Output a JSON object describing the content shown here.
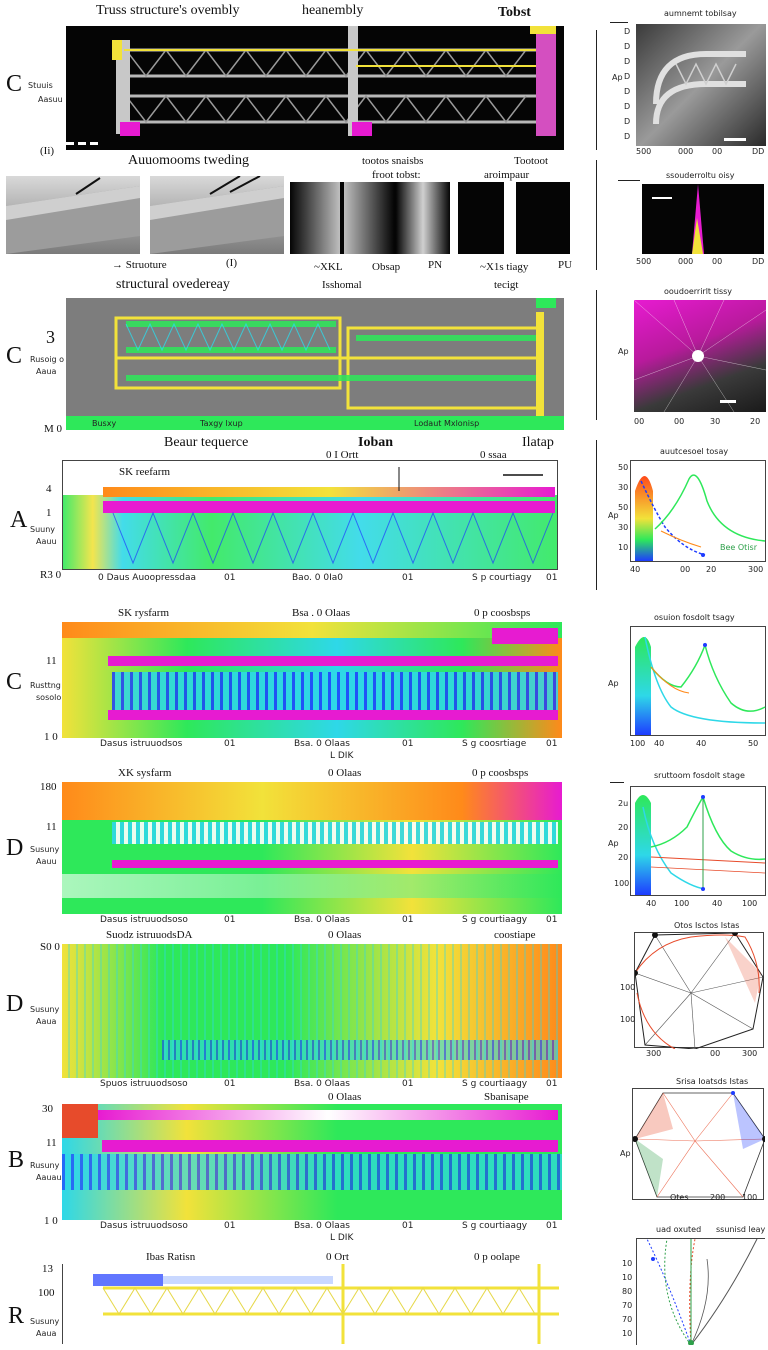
{
  "top_row": {
    "title_left": "Truss structure's ovembly",
    "title_mid": "heanembly",
    "title_right": "Tobst",
    "letter": "C",
    "side_label_1": "Stuuis",
    "side_label_2": "Aasuu",
    "corner_label": "(Ii)"
  },
  "weld_row": {
    "title_left": "Auuomooms tweding",
    "title_mid": "tootos snaisbs",
    "subtitle_mid": "froot tobst:",
    "title_right": "Tootoot",
    "subtitle_right": "aroimpaur",
    "arrow_label": "Struoture",
    "label_0": "(I)",
    "label_1": "~XKL",
    "label_2": "Obsap",
    "label_3": "PN",
    "label_4": "~X1s tiagy",
    "label_5": "PU"
  },
  "overlay_row": {
    "title_left": "structural ovedereay",
    "title_mid": "Isshomal",
    "title_right": "tecigt",
    "letter": "C",
    "number": "3",
    "side_label_1": "Rusoig o",
    "side_label_2": "Aaua",
    "bottom_left": "M 0",
    "bottom_1": "Busxy",
    "bottom_2": "Taxgy lxup",
    "bottom_3": "Lodaut Mxlonisp"
  },
  "map_a": {
    "title_left": "Beaur tequerce",
    "title_mid": "Ioban",
    "title_right": "Ilatap",
    "top_1": "0 I Ortt",
    "top_2": "0 ssaa",
    "inner_label": "SK reefarm",
    "letter": "A",
    "y_top": "4",
    "y_mid": "1",
    "y_bottom": "R3 0",
    "side_label_1": "Suuny",
    "side_label_2": "Aauu",
    "x_1": "0 Daus Auoopressdaa",
    "x_2": "01",
    "x_3": "Bao. 0 0Ia0",
    "x_4": "01",
    "x_5": "S p courtiagy",
    "x_6": "01"
  },
  "map_c": {
    "top_1": "SK rysfarm",
    "top_2": "Bsa . 0 Olaas",
    "top_3": "0 p coosbsps",
    "letter": "C",
    "y_top": "11",
    "y_bottom": "1 0",
    "side_label_1": "Rusttng",
    "side_label_2": "sosolo",
    "x_1": "Dasus istruuodsos",
    "x_2": "01",
    "x_3": "Bsa. 0 Olaas",
    "x_4": "01",
    "x_5": "S g coosrtiage",
    "x_6": "01",
    "x_center": "L DIK"
  },
  "map_d1": {
    "top_1": "XK sysfarm",
    "top_2": "0 Olaas",
    "top_3": "0 p coosbsps",
    "letter": "D",
    "y_top": "180",
    "y_mid": "11",
    "side_label_1": "Susuny",
    "side_label_2": "Aauu",
    "x_1": "Dasus istruuodsoso",
    "x_2": "01",
    "x_3": "Bsa. 0 Olaas",
    "x_4": "01",
    "x_5": "S g courtiaagy",
    "x_6": "01"
  },
  "map_d2": {
    "top_1": "Suodz istruuodsDA",
    "top_2": "0 Olaas",
    "top_3": "coostiape",
    "letter": "D",
    "y_top": "S0 0",
    "side_label_1": "Susuny",
    "side_label_2": "Aaua",
    "x_1": "Spuos istruuodsoso",
    "x_2": "01",
    "x_3": "Bsa. 0 Olaas",
    "x_4": "01",
    "x_5": "S g courtiaagy",
    "x_6": "01"
  },
  "map_b": {
    "top_1": "0 Olaas",
    "top_2": "Sbanisape",
    "letter": "B",
    "y_top": "30",
    "y_mid": "11",
    "y_bottom": "1 0",
    "side_label_1": "Rusuny",
    "side_label_2": "Aauau",
    "x_1": "Dasus istruuodsoso",
    "x_2": "01",
    "x_3": "Bsa. 0 Olaas",
    "x_4": "01",
    "x_5": "S g courtiaagy",
    "x_6": "01",
    "x_center": "L DIK"
  },
  "map_r": {
    "title_left": "Ibas Ratisn",
    "title_mid": "0 Ort",
    "title_right": "0 p oolape",
    "letter": "R",
    "y_top": "13",
    "y_mid": "100",
    "side_label_1": "Susuny",
    "side_label_2": "Aaua"
  },
  "right_col": {
    "sem_title": "aumnemt tobilsay",
    "sem_ticks": [
      "D",
      "D",
      "D",
      "D",
      "D",
      "D",
      "D",
      "D"
    ],
    "sem_y_label": "Ap",
    "sem_x": [
      "500",
      "000",
      "00",
      "DD"
    ],
    "heat_title": "ssouderroltu oisy",
    "heat_x": [
      "500",
      "000",
      "00",
      "DD"
    ],
    "polar_title": "ooudoerrirlt tissy",
    "polar_y_label": "Ap",
    "polar_x": [
      "00",
      "00",
      "30",
      "20"
    ],
    "line1_title": "auutcesoel tosay",
    "line1_y": [
      "50",
      "30",
      "50",
      "30",
      "10"
    ],
    "line1_y_label": "Ap",
    "line1_x": [
      "40",
      "00",
      "20",
      "300"
    ],
    "line1_legend": "Bee Otisr",
    "line2_title": "osuion fosdolt tsagy",
    "line2_y_label": "Ap",
    "line2_x": [
      "100",
      "40",
      "40",
      "50"
    ],
    "line3_title": "sruttoom fosdolt stage",
    "line3_y": [
      "2u",
      "20",
      "20",
      "100"
    ],
    "line3_y_label": "Ap",
    "line3_x": [
      "40",
      "100",
      "40",
      "100"
    ],
    "radar1_title": "Otos  Isctos Istas",
    "radar1_y": [
      "100",
      "100"
    ],
    "radar1_x": [
      "300",
      "00",
      "300"
    ],
    "radar2_title": "Srisa Ioatsds Istas",
    "radar2_x": [
      "Otes",
      "200",
      "100"
    ],
    "radar2_y": [
      "Ap"
    ],
    "fan_title_left": "uad oxuted",
    "fan_title_right": "ssunisd leay",
    "fan_y": [
      "10",
      "10",
      "80",
      "70",
      "70",
      "10"
    ]
  },
  "colors": {
    "yellow": "#f2e23a",
    "magenta": "#e71bd1",
    "green": "#2ee85a",
    "cyan": "#2ed8e8",
    "blue": "#1e3cff",
    "orange": "#ff8a1a",
    "black": "#050505"
  }
}
